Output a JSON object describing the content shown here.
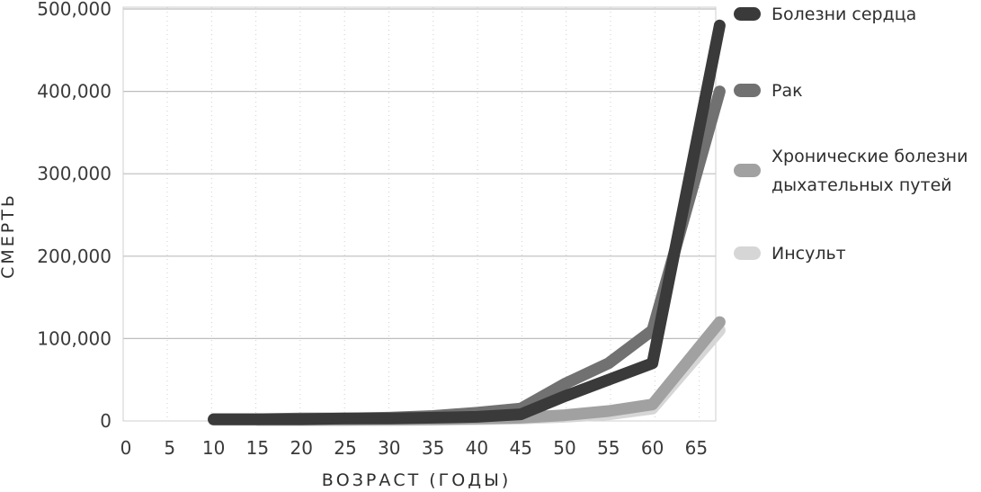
{
  "chart_data": {
    "type": "line",
    "xlabel": "ВОЗРАСТ (ГОДЫ)",
    "ylabel": "СМЕРТЬ",
    "x_ticks": [
      "0",
      "5",
      "10",
      "15",
      "20",
      "25",
      "30",
      "35",
      "40",
      "45",
      "50",
      "55",
      "60",
      "65"
    ],
    "y_ticks": [
      "0",
      "100,000",
      "200,000",
      "300,000",
      "400,000",
      "500,000"
    ],
    "xlim": [
      0,
      72
    ],
    "ylim": [
      0,
      500000
    ],
    "grid": true,
    "legend_position": "right",
    "series": [
      {
        "name": "Болезни сердца",
        "color": "#3a3a3a",
        "x": [
          10,
          15,
          20,
          25,
          30,
          35,
          40,
          45,
          50,
          55,
          60,
          65
        ],
        "y": [
          2000,
          2000,
          2000,
          3000,
          3000,
          4000,
          5000,
          8000,
          30000,
          50000,
          70000,
          480000
        ]
      },
      {
        "name": "Рак",
        "color": "#717171",
        "x": [
          10,
          15,
          20,
          25,
          30,
          35,
          40,
          45,
          50,
          55,
          60,
          65
        ],
        "y": [
          2000,
          2000,
          3000,
          3000,
          4000,
          6000,
          10000,
          15000,
          45000,
          70000,
          110000,
          400000
        ]
      },
      {
        "name": "Хронические болезни дыхательных путей",
        "color": "#a1a1a1",
        "x": [
          10,
          15,
          20,
          25,
          30,
          35,
          40,
          45,
          50,
          55,
          60,
          65
        ],
        "y": [
          1500,
          1500,
          1500,
          1500,
          2000,
          2000,
          3000,
          4000,
          7000,
          12000,
          20000,
          120000
        ]
      },
      {
        "name": "Инсульт",
        "color": "#d6d6d6",
        "x": [
          15,
          20,
          25,
          30,
          35,
          40,
          45,
          50,
          55,
          60,
          65
        ],
        "y": [
          1000,
          1000,
          1000,
          1000,
          1500,
          2000,
          3000,
          5000,
          8000,
          15000,
          110000
        ]
      }
    ]
  },
  "legend": [
    {
      "label": "Болезни сердца",
      "color": "#3a3a3a"
    },
    {
      "label": "Рак",
      "color": "#717171"
    },
    {
      "label": "Хронические болезни\nдыхательных путей",
      "color": "#a1a1a1"
    },
    {
      "label": "Инсульт",
      "color": "#d6d6d6"
    }
  ]
}
